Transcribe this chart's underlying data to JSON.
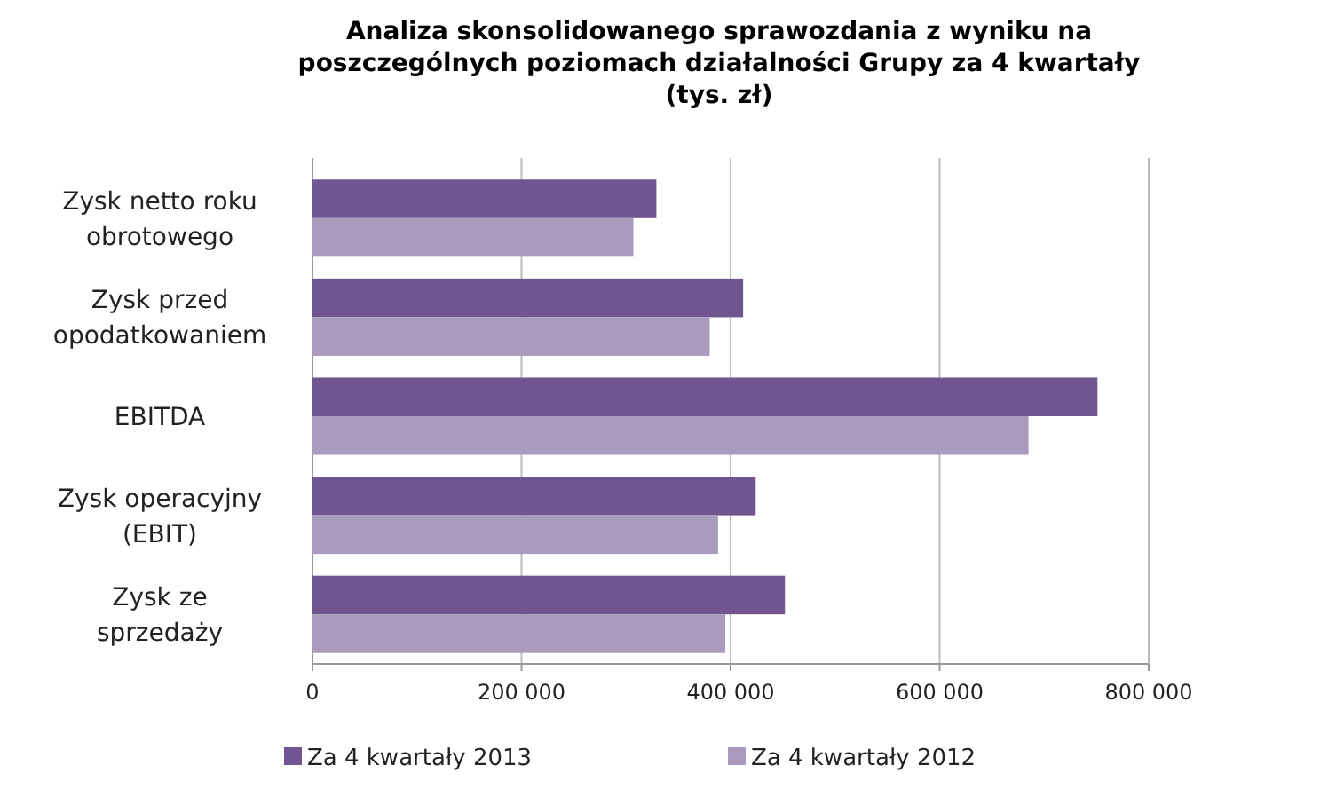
{
  "chart_data": {
    "type": "bar",
    "orientation": "horizontal",
    "title": "Analiza skonsolidowanego sprawozdania z wyniku na poszczególnych poziomach działalności Grupy za 4 kwartały (tys. zł)",
    "categories": [
      "Zysk netto roku obrotowego",
      "Zysk przed opodatkowaniem",
      "EBITDA",
      "Zysk operacyjny (EBIT)",
      "Zysk ze sprzedaży"
    ],
    "series": [
      {
        "name": "Za 4 kwartały 2013",
        "color": "#715591",
        "values": [
          329000,
          412000,
          751000,
          424000,
          452000
        ]
      },
      {
        "name": "Za 4 kwartały 2012",
        "color": "#a99bbe",
        "values": [
          307000,
          380000,
          685000,
          388000,
          395000
        ]
      }
    ],
    "xlim": [
      0,
      800000
    ],
    "xticks": [
      0,
      {
        "value": 200000,
        "label": "200 000"
      },
      {
        "value": 400000,
        "label": "400 000"
      },
      {
        "value": 600000,
        "label": "600 000"
      },
      {
        "value": 800000,
        "label": "800 000"
      }
    ],
    "grid": "x",
    "legend": "bottom"
  }
}
